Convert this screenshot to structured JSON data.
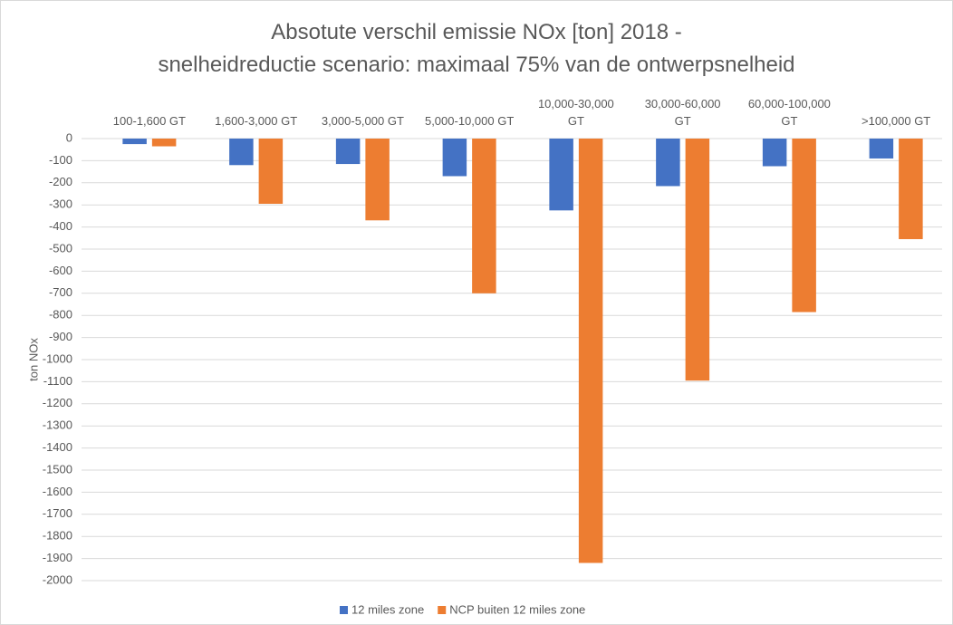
{
  "chart_data": {
    "type": "bar",
    "title": [
      "Absotute verschil emissie NOx [ton] 2018 -",
      "snelheidreductie scenario: maximaal 75% van de ontwerpsnelheid"
    ],
    "y_label": "ton NOx",
    "categories": [
      "100-1,600 GT",
      "1,600-3,000 GT",
      "3,000-5,000 GT",
      "5,000-10,000 GT",
      "10,000-30,000 GT",
      "30,000-60,000 GT",
      "60,000-100,000 GT",
      ">100,000 GT"
    ],
    "series": [
      {
        "name": "12 miles zone",
        "color": "#4472c4",
        "values": [
          -25,
          -120,
          -115,
          -170,
          -325,
          -215,
          -125,
          -90
        ]
      },
      {
        "name": "NCP buiten 12 miles zone",
        "color": "#ed7d31",
        "values": [
          -35,
          -295,
          -370,
          -700,
          -1920,
          -1095,
          -785,
          -455
        ]
      }
    ],
    "ylim": [
      -2000,
      0
    ],
    "yticks": [
      0,
      -100,
      -200,
      -300,
      -400,
      -500,
      -600,
      -700,
      -800,
      -900,
      -1000,
      -1100,
      -1200,
      -1300,
      -1400,
      -1500,
      -1600,
      -1700,
      -1800,
      -1900,
      -2000
    ],
    "grid": true,
    "legend": "bottom"
  }
}
